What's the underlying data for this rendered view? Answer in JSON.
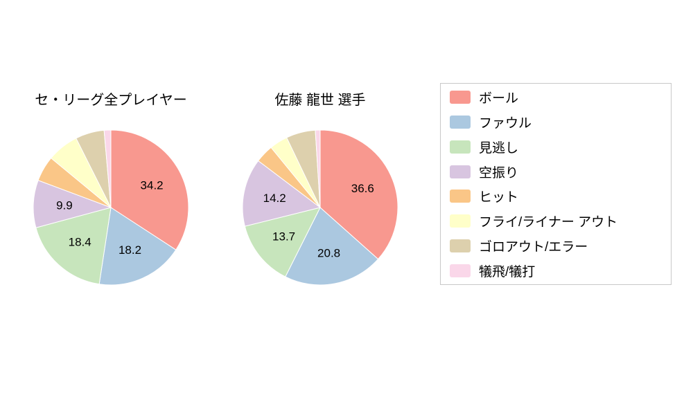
{
  "figure": {
    "background": "#ffffff"
  },
  "legend": {
    "position": "right",
    "entries": [
      {
        "key": "ball",
        "label": "ボール",
        "color": "#f8988f"
      },
      {
        "key": "foul",
        "label": "ファウル",
        "color": "#abc8e0"
      },
      {
        "key": "called-strike",
        "label": "見逃し",
        "color": "#c7e5bc"
      },
      {
        "key": "swinging-strike",
        "label": "空振り",
        "color": "#d8c5e0"
      },
      {
        "key": "hit",
        "label": "ヒット",
        "color": "#fac687"
      },
      {
        "key": "fly-liner-out",
        "label": "フライ/ライナー アウト",
        "color": "#ffffc9"
      },
      {
        "key": "ground-out-error",
        "label": "ゴロアウト/エラー",
        "color": "#ddd0ad"
      },
      {
        "key": "sacrifice",
        "label": "犠飛/犠打",
        "color": "#fad7e9"
      }
    ]
  },
  "chart_data": [
    {
      "type": "pie",
      "title": "セ・リーグ全プレイヤー",
      "start_angle_deg_from_top": 0,
      "direction": "clockwise",
      "categories": [
        "ボール",
        "ファウル",
        "見逃し",
        "空振り",
        "ヒット",
        "フライ/ライナー アウト",
        "ゴロアウト/エラー",
        "犠飛/犠打"
      ],
      "values": [
        34.2,
        18.2,
        18.4,
        9.9,
        5.3,
        6.6,
        6.0,
        1.4
      ],
      "labels": [
        "34.2",
        "18.2",
        "18.4",
        "9.9",
        null,
        null,
        null,
        null
      ]
    },
    {
      "type": "pie",
      "title": "佐藤 龍世  選手",
      "start_angle_deg_from_top": 0,
      "direction": "clockwise",
      "categories": [
        "ボール",
        "ファウル",
        "見逃し",
        "空振り",
        "ヒット",
        "フライ/ライナー アウト",
        "ゴロアウト/エラー",
        "犠飛/犠打"
      ],
      "values": [
        36.6,
        20.8,
        13.7,
        14.2,
        3.8,
        3.8,
        6.1,
        1.0
      ],
      "labels": [
        "36.6",
        "20.8",
        "13.7",
        "14.2",
        null,
        null,
        null,
        null
      ]
    }
  ]
}
